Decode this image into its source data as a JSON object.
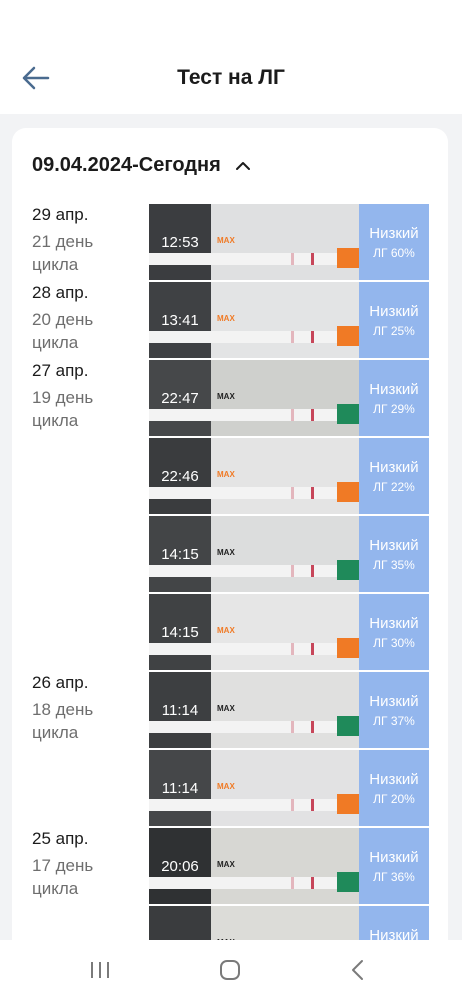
{
  "header": {
    "title": "Тест на ЛГ",
    "back_icon": "arrow-left-icon"
  },
  "range": {
    "label": "09.04.2024-Сегодня",
    "icon": "chevron-up-icon"
  },
  "entries": [
    {
      "date": "29 апр.",
      "cycle": "21 день цикла",
      "time": "12:53",
      "level": "Низкий",
      "lh": "ЛГ 60%"
    },
    {
      "date": "28 апр.",
      "cycle": "20 день цикла",
      "time": "13:41",
      "level": "Низкий",
      "lh": "ЛГ 25%"
    },
    {
      "date": "27 апр.",
      "cycle": "19 день цикла",
      "time": "22:47",
      "level": "Низкий",
      "lh": "ЛГ 29%"
    },
    {
      "date": "",
      "cycle": "",
      "time": "22:46",
      "level": "Низкий",
      "lh": "ЛГ 22%"
    },
    {
      "date": "",
      "cycle": "",
      "time": "14:15",
      "level": "Низкий",
      "lh": "ЛГ 35%"
    },
    {
      "date": "",
      "cycle": "",
      "time": "14:15",
      "level": "Низкий",
      "lh": "ЛГ 30%"
    },
    {
      "date": "26 апр.",
      "cycle": "18 день цикла",
      "time": "11:14",
      "level": "Низкий",
      "lh": "ЛГ 37%"
    },
    {
      "date": "",
      "cycle": "",
      "time": "11:14",
      "level": "Низкий",
      "lh": "ЛГ 20%"
    },
    {
      "date": "25 апр.",
      "cycle": "17 день цикла",
      "time": "20:06",
      "level": "Низкий",
      "lh": "ЛГ 36%"
    },
    {
      "date": "",
      "cycle": "",
      "time": "",
      "level": "Низкий",
      "lh": ""
    }
  ],
  "strip_label": "MAX",
  "colors": {
    "result_bg": "#93b6ed",
    "accent_orange": "#f07a25",
    "control_line": "#c7465a"
  },
  "navbar": {
    "recent": "recent-apps-icon",
    "home": "home-icon",
    "back": "back-icon"
  }
}
